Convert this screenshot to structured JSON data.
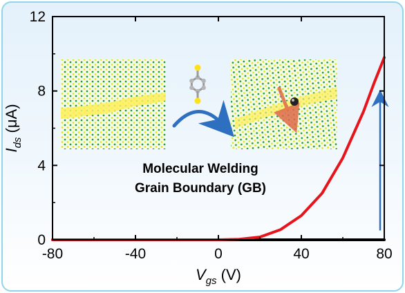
{
  "chart_data": {
    "type": "line",
    "xlabel": {
      "symbol": "V",
      "sub": "gs",
      "unit": " (V)"
    },
    "ylabel": {
      "symbol": "I",
      "sub": "ds",
      "unit": " (μA)"
    },
    "xlim": [
      -80,
      80
    ],
    "ylim": [
      0,
      12
    ],
    "x_ticks": [
      -80,
      -40,
      0,
      40,
      80
    ],
    "y_ticks": [
      0,
      4,
      8,
      12
    ],
    "grid": false,
    "series": [
      {
        "color": "#000000",
        "x": [
          -80,
          -40,
          0,
          40,
          80
        ],
        "y": [
          0,
          0,
          0,
          0,
          0
        ]
      },
      {
        "color": "#e8141c",
        "x": [
          -80,
          -40,
          0,
          10,
          20,
          30,
          40,
          50,
          60,
          70,
          75,
          80
        ],
        "y": [
          0,
          0,
          0,
          0.03,
          0.15,
          0.55,
          1.3,
          2.5,
          4.4,
          6.9,
          8.4,
          9.8
        ]
      }
    ],
    "annotations": [
      {
        "type": "text",
        "lines": [
          "Molecular Welding",
          "Grain Boundary (GB)"
        ]
      },
      {
        "type": "arrow",
        "color": "#2f6fc0",
        "x": 78,
        "y_from": 0.5,
        "y_to": 7.9,
        "direction": "up"
      }
    ]
  },
  "colors": {
    "lattice_dot": "#1a9a3a",
    "lattice_dot_alt": "#d6e61a",
    "grain_boundary": "#ffef5a",
    "welding_arrow": "#2f6fc0",
    "molecule_ring": "#9a9a9a",
    "molecule_sulfur": "#ffe11a"
  }
}
